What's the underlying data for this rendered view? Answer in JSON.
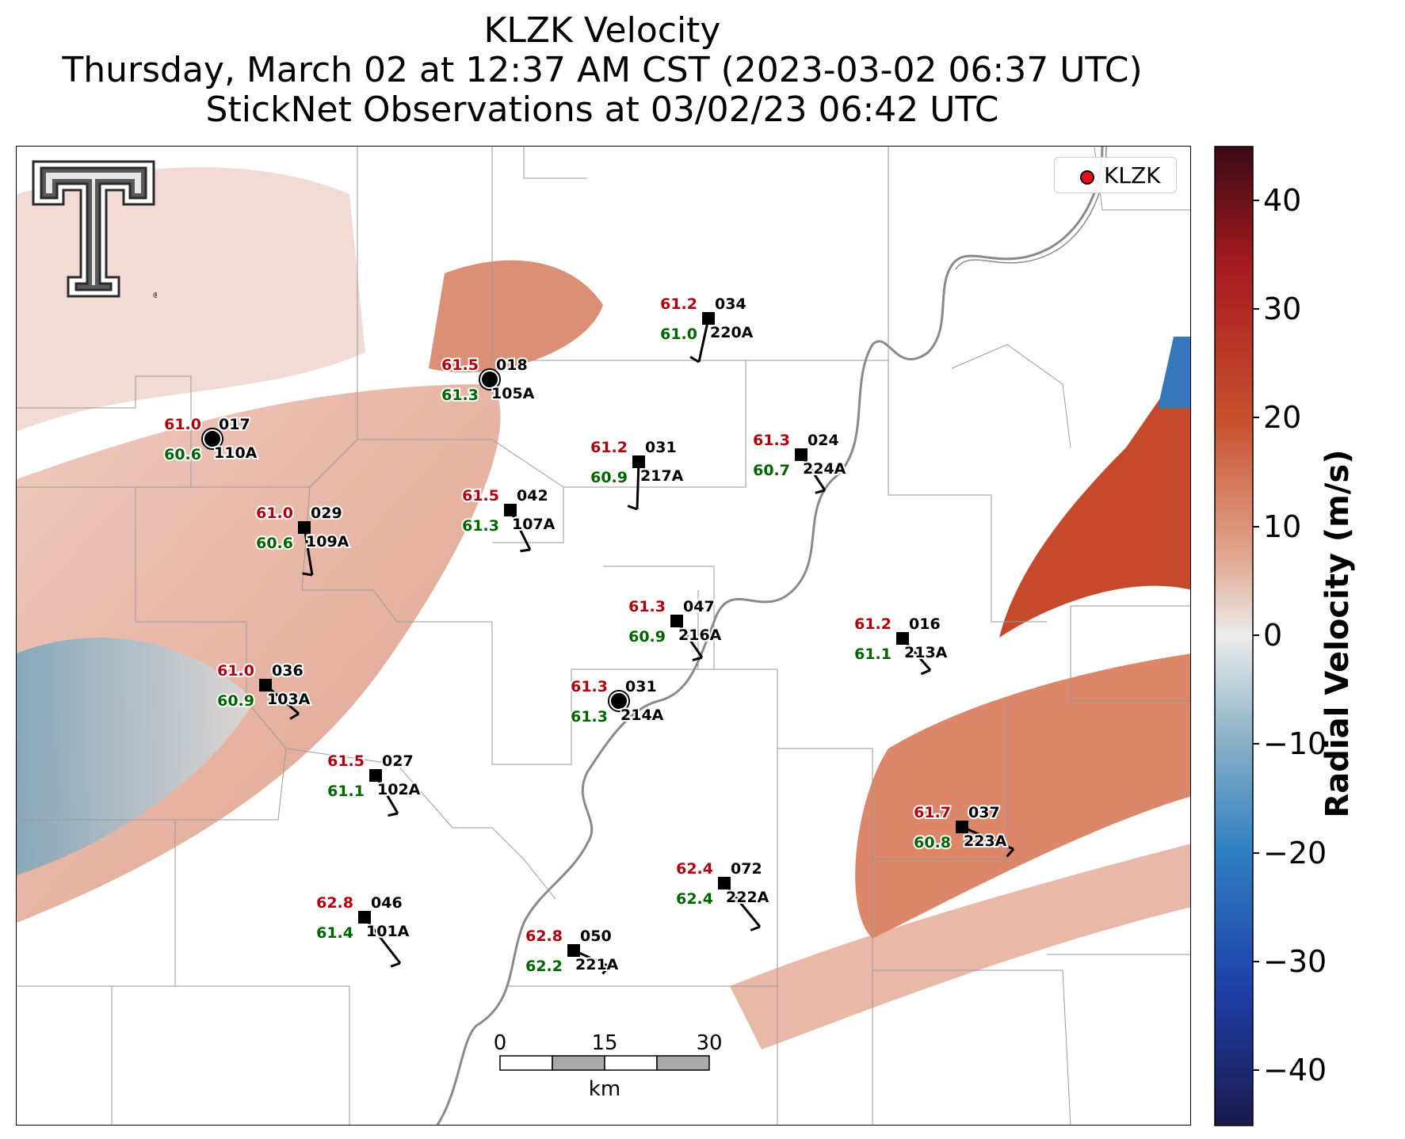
{
  "title": {
    "line1": "KLZK Velocity",
    "line2": "Thursday, March 02 at 12:37 AM CST (2023-03-02 06:37 UTC)",
    "line3": "StickNet Observations at 03/02/23 06:42 UTC"
  },
  "legend": {
    "label": "KLZK"
  },
  "colorbar": {
    "title": "Radial Velocity (m/s)",
    "ticks": [
      "40",
      "30",
      "20",
      "10",
      "0",
      "−10",
      "−20",
      "−30",
      "−40"
    ],
    "range": [
      -45,
      45
    ],
    "colors": [
      "#1a1a4a",
      "#1f3fa8",
      "#2f7fc1",
      "#8fb4c7",
      "#ececec",
      "#e0a890",
      "#c8502e",
      "#a51a20",
      "#3a0a14"
    ]
  },
  "scalebar": {
    "ticks": [
      "0",
      "15",
      "30"
    ],
    "unit": "km"
  },
  "colors": {
    "temp": "#b0000f",
    "dew": "#006400",
    "id": "#000000"
  },
  "stations": [
    {
      "temp": "61.0",
      "dir": "017",
      "dew": "60.6",
      "id": "110A",
      "marker": "circle"
    },
    {
      "temp": "61.5",
      "dir": "018",
      "dew": "61.3",
      "id": "105A",
      "marker": "circle"
    },
    {
      "temp": "61.2",
      "dir": "034",
      "dew": "61.0",
      "id": "220A",
      "marker": "square"
    },
    {
      "temp": "61.2",
      "dir": "031",
      "dew": "60.9",
      "id": "217A",
      "marker": "square"
    },
    {
      "temp": "61.3",
      "dir": "024",
      "dew": "60.7",
      "id": "224A",
      "marker": "square"
    },
    {
      "temp": "61.5",
      "dir": "042",
      "dew": "61.3",
      "id": "107A",
      "marker": "square"
    },
    {
      "temp": "61.0",
      "dir": "029",
      "dew": "60.6",
      "id": "109A",
      "marker": "square"
    },
    {
      "temp": "61.3",
      "dir": "047",
      "dew": "60.9",
      "id": "216A",
      "marker": "square"
    },
    {
      "temp": "61.2",
      "dir": "016",
      "dew": "61.1",
      "id": "213A",
      "marker": "square"
    },
    {
      "temp": "61.0",
      "dir": "036",
      "dew": "60.9",
      "id": "103A",
      "marker": "square"
    },
    {
      "temp": "61.3",
      "dir": "031",
      "dew": "61.3",
      "id": "214A",
      "marker": "circle"
    },
    {
      "temp": "61.5",
      "dir": "027",
      "dew": "61.1",
      "id": "102A",
      "marker": "square"
    },
    {
      "temp": "61.7",
      "dir": "037",
      "dew": "60.8",
      "id": "223A",
      "marker": "square"
    },
    {
      "temp": "62.4",
      "dir": "072",
      "dew": "62.4",
      "id": "222A",
      "marker": "square"
    },
    {
      "temp": "62.8",
      "dir": "046",
      "dew": "61.4",
      "id": "101A",
      "marker": "square"
    },
    {
      "temp": "62.8",
      "dir": "050",
      "dew": "62.2",
      "id": "221A",
      "marker": "square"
    }
  ]
}
